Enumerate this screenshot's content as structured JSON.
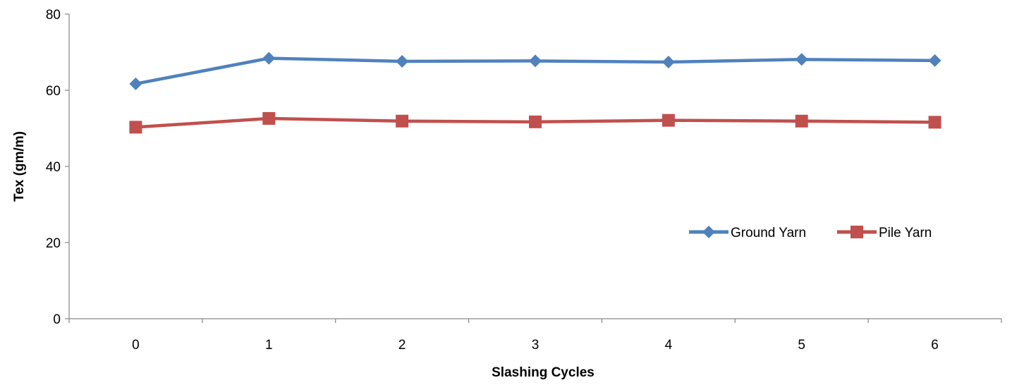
{
  "chart_data": {
    "type": "line",
    "title": "",
    "xlabel": "Slashing Cycles",
    "ylabel": "Tex (gm/m)",
    "categories": [
      "0",
      "1",
      "2",
      "3",
      "4",
      "5",
      "6"
    ],
    "ylim": [
      0,
      80
    ],
    "yticks": [
      "0",
      "20",
      "40",
      "60",
      "80"
    ],
    "grid": false,
    "legend_position": "right",
    "series": [
      {
        "name": "Ground Yarn",
        "values": [
          61.7,
          68.4,
          67.6,
          67.7,
          67.4,
          68.1,
          67.8
        ],
        "color": "#4F81BD",
        "marker": "diamond"
      },
      {
        "name": "Pile Yarn",
        "values": [
          50.3,
          52.6,
          51.9,
          51.7,
          52.1,
          51.9,
          51.6
        ],
        "color": "#C0504D",
        "marker": "square"
      }
    ]
  }
}
